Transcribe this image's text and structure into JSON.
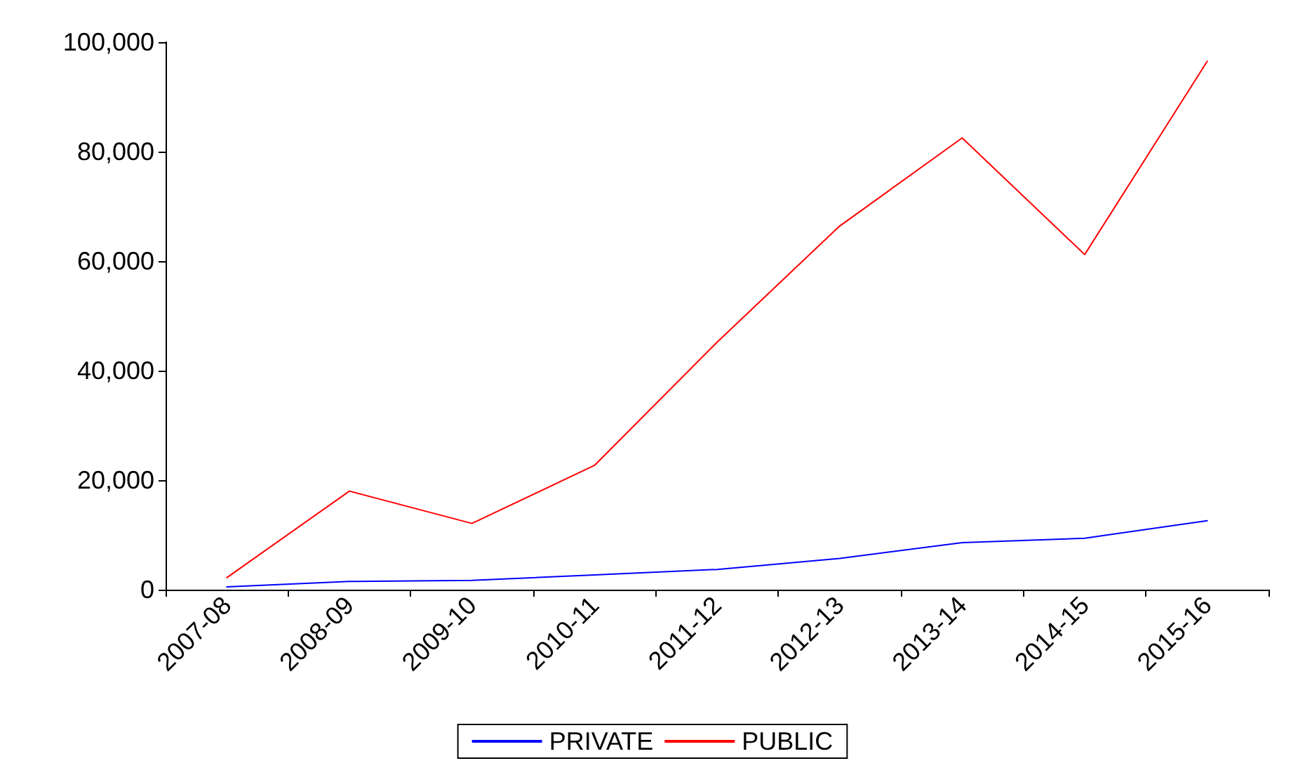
{
  "chart_data": {
    "type": "line",
    "categories": [
      "2007-08",
      "2008-09",
      "2009-10",
      "2010-11",
      "2011-12",
      "2012-13",
      "2013-14",
      "2014-15",
      "2015-16"
    ],
    "series": [
      {
        "name": "PRIVATE",
        "color": "#0000ff",
        "values": [
          500,
          1500,
          1700,
          2700,
          3700,
          5700,
          8600,
          9400,
          12600
        ]
      },
      {
        "name": "PUBLIC",
        "color": "#ff0000",
        "values": [
          2200,
          18000,
          12100,
          22700,
          45200,
          66400,
          82500,
          61200,
          96500
        ]
      }
    ],
    "ylim": [
      0,
      100000
    ],
    "yticks": [
      {
        "value": 0,
        "label": "0"
      },
      {
        "value": 20000,
        "label": "20,000"
      },
      {
        "value": 40000,
        "label": "40,000"
      },
      {
        "value": 60000,
        "label": "60,000"
      },
      {
        "value": 80000,
        "label": "80,000"
      },
      {
        "value": 100000,
        "label": "100,000"
      }
    ],
    "grid": false,
    "legend": "bottom",
    "marker": "none",
    "line_style": "solid"
  }
}
